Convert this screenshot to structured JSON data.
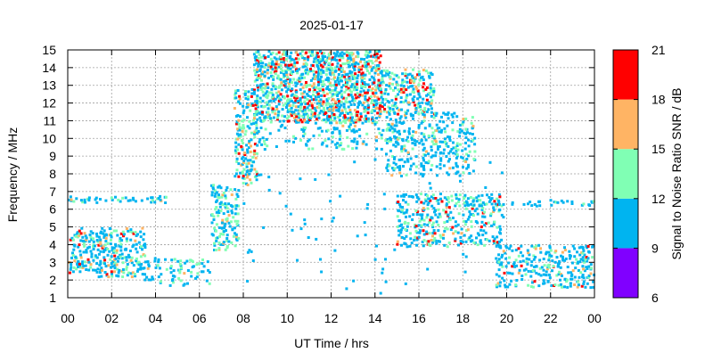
{
  "chart_data": {
    "type": "scatter",
    "title": "2025-01-17",
    "xlabel": "UT Time / hrs",
    "ylabel": "Frequency / MHz",
    "xlim": [
      0,
      24
    ],
    "ylim": [
      1,
      15
    ],
    "x_ticks": [
      "00",
      "02",
      "04",
      "06",
      "08",
      "10",
      "12",
      "14",
      "16",
      "18",
      "20",
      "22",
      "00"
    ],
    "y_ticks": [
      "1",
      "2",
      "3",
      "4",
      "5",
      "6",
      "7",
      "8",
      "9",
      "10",
      "11",
      "12",
      "13",
      "14",
      "15"
    ],
    "grid": true,
    "colorbar": {
      "label": "Signal to Noise Ratio SNR / dB",
      "ticks": [
        "6",
        "9",
        "12",
        "15",
        "18",
        "21"
      ],
      "range": [
        6,
        21
      ],
      "bands": [
        {
          "from": 6,
          "to": 9,
          "color": "#8000ff"
        },
        {
          "from": 9,
          "to": 12,
          "color": "#00b4f0"
        },
        {
          "from": 12,
          "to": 15,
          "color": "#80ffb4"
        },
        {
          "from": 15,
          "to": 18,
          "color": "#ffb464"
        },
        {
          "from": 18,
          "to": 21,
          "color": "#ff0000"
        }
      ]
    },
    "regions": [
      {
        "x": [
          0.0,
          4.6
        ],
        "y": [
          6.5,
          6.8
        ],
        "density": 0.45,
        "mix": [
          0.8,
          0.15,
          0.05,
          0.0
        ]
      },
      {
        "x": [
          0.0,
          3.5
        ],
        "y": [
          2.3,
          5.0
        ],
        "density": 0.5,
        "mix": [
          0.65,
          0.2,
          0.1,
          0.05
        ]
      },
      {
        "x": [
          3.5,
          6.5
        ],
        "y": [
          1.8,
          3.3
        ],
        "density": 0.22,
        "mix": [
          0.7,
          0.25,
          0.05,
          0.0
        ]
      },
      {
        "x": [
          6.5,
          7.8
        ],
        "y": [
          3.8,
          7.5
        ],
        "density": 0.45,
        "mix": [
          0.6,
          0.3,
          0.1,
          0.0
        ]
      },
      {
        "x": [
          7.6,
          8.6
        ],
        "y": [
          7.5,
          12.8
        ],
        "density": 0.45,
        "mix": [
          0.5,
          0.3,
          0.1,
          0.1
        ]
      },
      {
        "x": [
          8.5,
          14.2
        ],
        "y": [
          11.0,
          15.0
        ],
        "density": 0.7,
        "mix": [
          0.45,
          0.3,
          0.1,
          0.15
        ]
      },
      {
        "x": [
          14.2,
          16.6
        ],
        "y": [
          11.5,
          14.0
        ],
        "density": 0.45,
        "mix": [
          0.5,
          0.25,
          0.1,
          0.15
        ]
      },
      {
        "x": [
          8.6,
          15.2
        ],
        "y": [
          9.5,
          11.0
        ],
        "density": 0.2,
        "mix": [
          0.7,
          0.25,
          0.05,
          0.0
        ]
      },
      {
        "x": [
          14.5,
          18.5
        ],
        "y": [
          8.0,
          11.5
        ],
        "density": 0.3,
        "mix": [
          0.75,
          0.2,
          0.05,
          0.0
        ]
      },
      {
        "x": [
          15.0,
          19.8
        ],
        "y": [
          4.0,
          7.0
        ],
        "density": 0.35,
        "mix": [
          0.6,
          0.25,
          0.05,
          0.1
        ]
      },
      {
        "x": [
          18.0,
          24.0
        ],
        "y": [
          6.3,
          6.6
        ],
        "density": 0.4,
        "mix": [
          0.9,
          0.1,
          0.0,
          0.0
        ]
      },
      {
        "x": [
          19.5,
          24.0
        ],
        "y": [
          1.7,
          4.0
        ],
        "density": 0.35,
        "mix": [
          0.7,
          0.2,
          0.05,
          0.05
        ]
      },
      {
        "x": [
          8.0,
          20.0
        ],
        "y": [
          1.3,
          9.0
        ],
        "density": 0.015,
        "mix": [
          1.0,
          0.0,
          0.0,
          0.0
        ]
      }
    ]
  }
}
